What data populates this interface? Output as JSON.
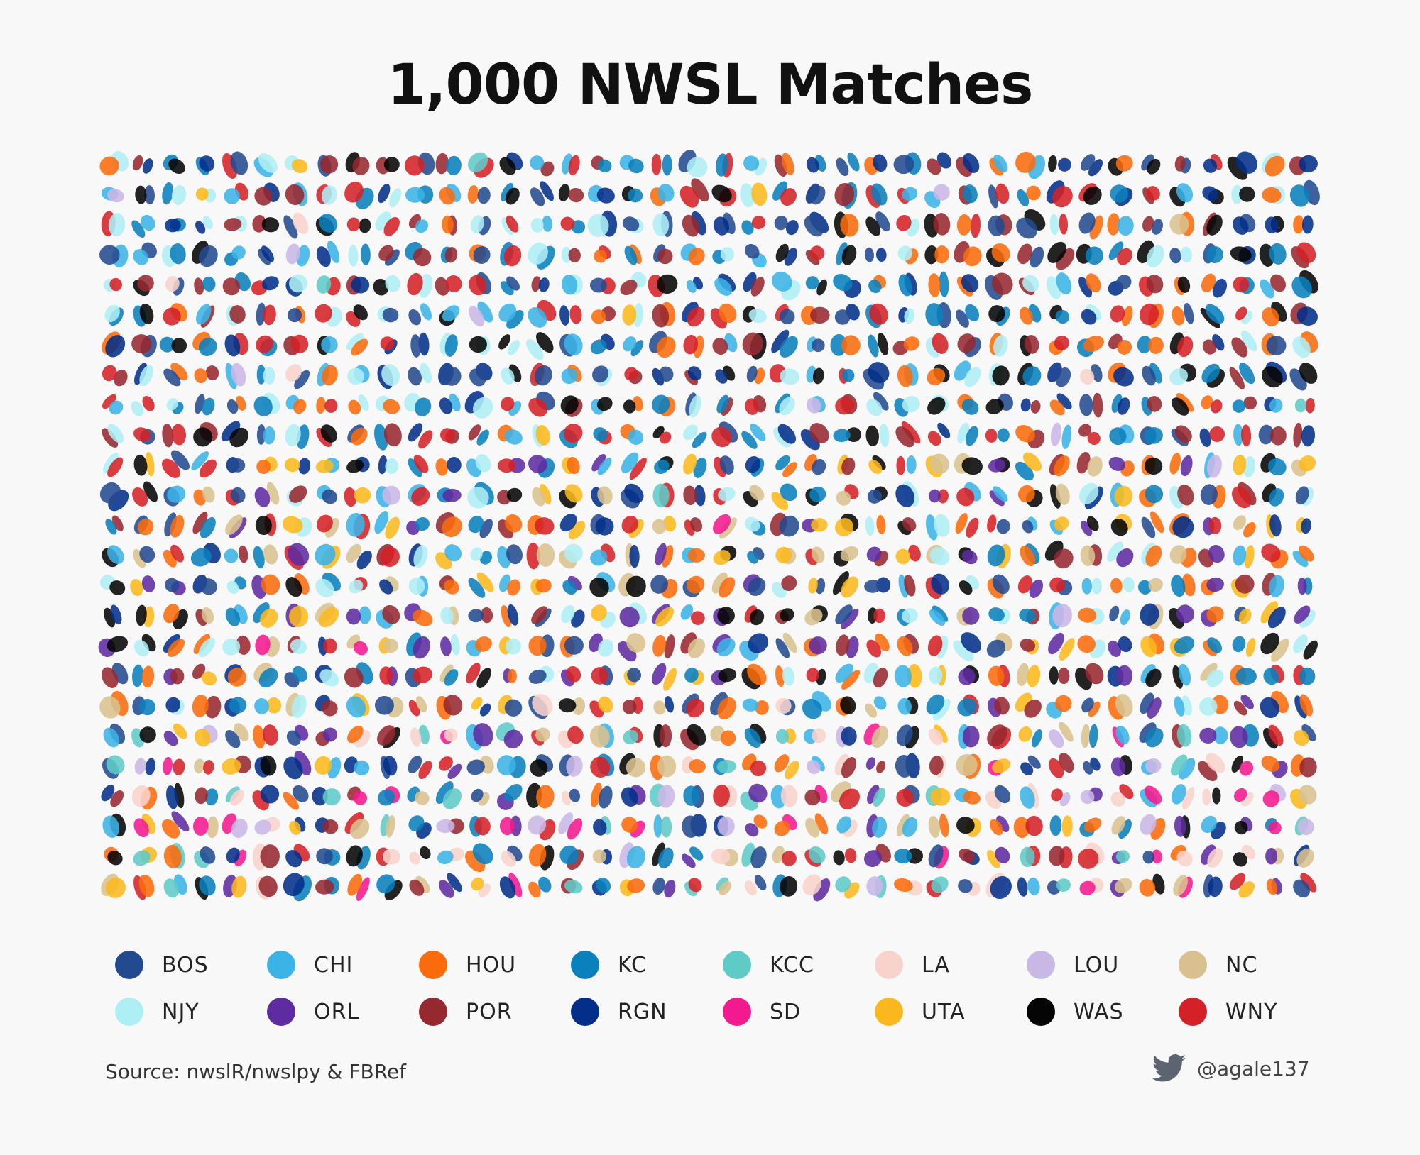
{
  "title": "1,000 NWSL Matches",
  "source": "Source: nwslR/nwslpy & FBRef",
  "handle": "@agale137",
  "icons": {
    "social": "twitter-bird-icon"
  },
  "teams": [
    {
      "code": "BOS",
      "color": "#234a8f"
    },
    {
      "code": "CHI",
      "color": "#3bb3e6"
    },
    {
      "code": "HOU",
      "color": "#f96b0d"
    },
    {
      "code": "KC",
      "color": "#0a80bd"
    },
    {
      "code": "KCC",
      "color": "#5ecbc7"
    },
    {
      "code": "LA",
      "color": "#f8d3cc"
    },
    {
      "code": "LOU",
      "color": "#c9b7e6"
    },
    {
      "code": "NC",
      "color": "#d8c18e"
    },
    {
      "code": "NJY",
      "color": "#aeeef5"
    },
    {
      "code": "ORL",
      "color": "#5e2ba1"
    },
    {
      "code": "POR",
      "color": "#962830"
    },
    {
      "code": "RGN",
      "color": "#032f8a"
    },
    {
      "code": "SD",
      "color": "#f21a8e"
    },
    {
      "code": "UTA",
      "color": "#fbb81e"
    },
    {
      "code": "WAS",
      "color": "#050505"
    },
    {
      "code": "WNY",
      "color": "#d42127"
    }
  ],
  "chart_data": {
    "type": "scatter",
    "title": "1,000 NWSL Matches",
    "matches": 1000,
    "grid": {
      "columns": 40,
      "rows": 25
    },
    "encoding": "Each match is drawn as a pair of overlapping ellipses colored by the two teams",
    "series_legend": [
      "BOS",
      "CHI",
      "HOU",
      "KC",
      "KCC",
      "LA",
      "LOU",
      "NC",
      "NJY",
      "ORL",
      "POR",
      "RGN",
      "SD",
      "UTA",
      "WAS",
      "WNY"
    ],
    "legend_position": "bottom"
  }
}
